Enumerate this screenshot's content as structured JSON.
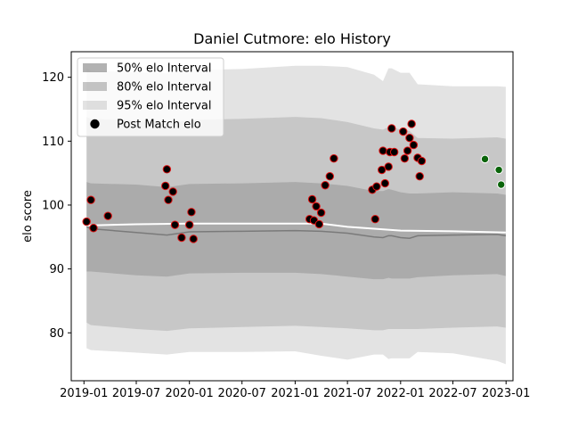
{
  "chart_data": {
    "type": "line",
    "title": "Daniel Cutmore: elo History",
    "xlabel": "",
    "ylabel": "elo score",
    "xlim": [
      "2018-11-18",
      "2023-01-25"
    ],
    "ylim": [
      72.5,
      124
    ],
    "x_ticks": [
      "2019-01",
      "2019-07",
      "2020-01",
      "2020-07",
      "2021-01",
      "2021-07",
      "2022-01",
      "2022-07",
      "2023-01"
    ],
    "y_ticks": [
      80,
      90,
      100,
      110,
      120
    ],
    "grid": false,
    "legend_position": "upper-left",
    "legend": [
      {
        "label": "50% elo Interval",
        "color": "#b0b0b0"
      },
      {
        "label": "80% elo Interval",
        "color": "#c4c4c4"
      },
      {
        "label": "95% elo Interval",
        "color": "#e2e2e2"
      },
      {
        "label": "Post Match elo",
        "color": "#000000"
      }
    ],
    "bands": {
      "x": [
        "2019-01-10",
        "2019-01-25",
        "2019-07-01",
        "2019-10-15",
        "2020-01-01",
        "2020-07-01",
        "2021-01-01",
        "2021-04-01",
        "2021-07-01",
        "2021-10-01",
        "2021-11-01",
        "2021-11-20",
        "2021-12-01",
        "2022-01-01",
        "2022-02-01",
        "2022-03-01",
        "2022-07-01",
        "2022-12-01",
        "2022-12-31"
      ],
      "median": [
        96.6,
        96.3,
        95.7,
        95.3,
        95.8,
        95.9,
        96.0,
        95.9,
        95.6,
        95.0,
        94.9,
        95.2,
        95.2,
        94.9,
        94.8,
        95.2,
        95.3,
        95.4,
        95.2
      ],
      "band50": {
        "upper": [
          103.6,
          103.4,
          103.2,
          102.8,
          103.3,
          103.4,
          103.6,
          103.4,
          103.0,
          102.2,
          102.2,
          102.5,
          102.4,
          102.0,
          101.8,
          101.8,
          102.0,
          101.8,
          101.6
        ],
        "lower": [
          89.6,
          89.6,
          89.0,
          88.8,
          89.3,
          89.4,
          89.4,
          89.2,
          88.8,
          88.4,
          88.4,
          88.6,
          88.5,
          88.5,
          88.5,
          88.7,
          89.0,
          89.2,
          88.9
        ]
      },
      "band80": {
        "upper": [
          113.8,
          113.5,
          113.2,
          112.7,
          113.3,
          113.5,
          113.8,
          113.6,
          113.0,
          112.0,
          111.8,
          112.2,
          112.2,
          111.8,
          111.6,
          110.5,
          110.4,
          110.6,
          110.4
        ],
        "lower": [
          81.6,
          81.2,
          80.6,
          80.3,
          80.7,
          80.9,
          81.1,
          80.9,
          80.7,
          80.4,
          80.4,
          80.6,
          80.6,
          80.6,
          80.6,
          80.6,
          80.8,
          81.0,
          80.8
        ]
      },
      "band95": {
        "upper": [
          121.4,
          121.0,
          120.8,
          120.6,
          121.1,
          121.3,
          121.8,
          121.8,
          121.6,
          120.4,
          119.4,
          121.4,
          121.4,
          120.7,
          120.7,
          118.9,
          118.6,
          118.6,
          118.5
        ],
        "lower": [
          77.6,
          77.3,
          76.9,
          76.6,
          77.0,
          77.0,
          77.1,
          76.4,
          75.8,
          76.6,
          76.6,
          75.9,
          76.0,
          76.0,
          76.0,
          77.0,
          76.8,
          75.6,
          75.1
        ]
      }
    },
    "series": [
      {
        "values": [
          [
            "2019-01-10",
            97.4
          ],
          [
            "2019-01-25",
            100.8
          ],
          [
            "2019-02-03",
            96.4
          ],
          [
            "2019-03-25",
            98.3
          ],
          [
            "2019-10-10",
            103.0
          ],
          [
            "2019-10-15",
            105.6
          ],
          [
            "2019-10-20",
            100.8
          ],
          [
            "2019-11-05",
            102.1
          ],
          [
            "2019-11-12",
            96.9
          ],
          [
            "2019-12-05",
            94.9
          ],
          [
            "2020-01-01",
            96.9
          ],
          [
            "2020-01-08",
            98.9
          ],
          [
            "2020-01-15",
            94.7
          ],
          [
            "2021-02-20",
            97.8
          ],
          [
            "2021-03-01",
            100.9
          ],
          [
            "2021-03-07",
            97.6
          ],
          [
            "2021-03-15",
            99.8
          ],
          [
            "2021-03-25",
            97.0
          ],
          [
            "2021-04-01",
            98.8
          ],
          [
            "2021-04-15",
            103.1
          ],
          [
            "2021-05-01",
            104.5
          ],
          [
            "2021-05-15",
            107.3
          ],
          [
            "2021-09-25",
            102.4
          ],
          [
            "2021-10-05",
            97.8
          ],
          [
            "2021-10-10",
            102.9
          ],
          [
            "2021-10-28",
            105.5
          ],
          [
            "2021-11-01",
            108.5
          ],
          [
            "2021-11-08",
            103.4
          ],
          [
            "2021-11-20",
            106.0
          ],
          [
            "2021-11-25",
            108.3
          ],
          [
            "2021-12-01",
            112.0
          ],
          [
            "2021-12-10",
            108.3
          ],
          [
            "2022-01-10",
            111.5
          ],
          [
            "2022-01-15",
            107.3
          ],
          [
            "2022-01-25",
            108.5
          ],
          [
            "2022-02-01",
            110.5
          ],
          [
            "2022-02-08",
            112.7
          ],
          [
            "2022-02-15",
            109.4
          ],
          [
            "2022-03-01",
            107.4
          ],
          [
            "2022-03-08",
            104.5
          ],
          [
            "2022-03-15",
            106.9
          ]
        ],
        "color": "#000000",
        "edge": "#e01010"
      },
      {
        "values": [
          [
            "2022-10-20",
            107.2
          ],
          [
            "2022-12-07",
            105.5
          ],
          [
            "2022-12-15",
            103.2
          ]
        ],
        "color": "#0a640a",
        "edge": "#ffffff"
      }
    ],
    "white_line": {
      "x": [
        "2019-01-10",
        "2019-07-01",
        "2020-01-01",
        "2021-01-01",
        "2021-04-01",
        "2021-07-01",
        "2021-10-01",
        "2022-01-01",
        "2022-07-01",
        "2022-12-31"
      ],
      "y": [
        96.8,
        97.0,
        97.1,
        97.1,
        97.1,
        96.6,
        96.3,
        96.0,
        95.9,
        95.7
      ]
    }
  }
}
